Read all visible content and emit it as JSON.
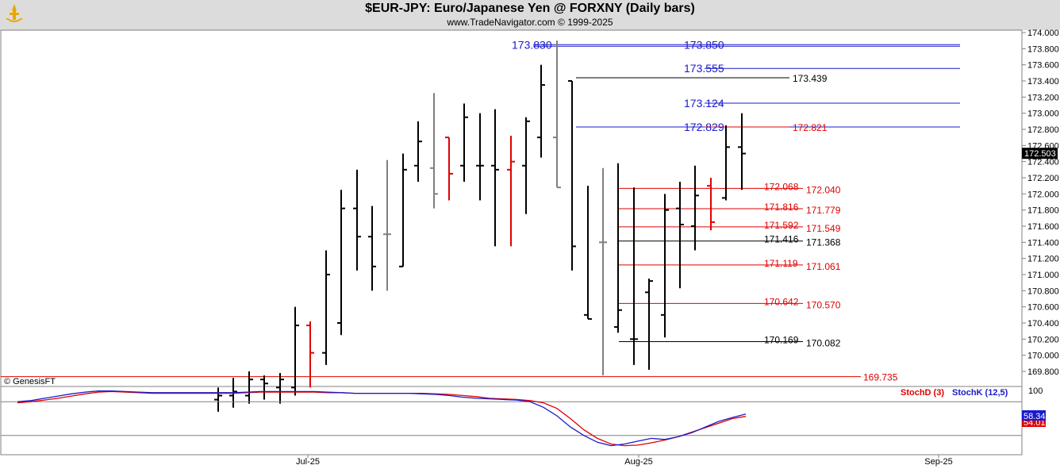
{
  "header": {
    "title": "$EUR-JPY:  Euro/Japanese Yen @ FORXNY  (Daily bars)",
    "subtitle": "www.TradeNavigator.com © 1999-2025"
  },
  "watermark": "© GenesisFT",
  "colors": {
    "background": "#ffffff",
    "header": "#dcdcdc",
    "up_bar": "#000000",
    "down_bar": "#e00000",
    "neutral_bar": "#808080",
    "blue_level": "#1a1acc",
    "red_level": "#e00000",
    "stoch_d": "#e00000",
    "stoch_k": "#1a1acc"
  },
  "chart_data": [
    {
      "type": "ohlc",
      "title": "$EUR-JPY:  Euro/Japanese Yen @ FORXNY  (Daily bars)",
      "ylim": [
        169.6,
        174.05
      ],
      "y_ticks": [
        "174.000",
        "173.800",
        "173.600",
        "173.400",
        "173.200",
        "173.000",
        "172.800",
        "172.600",
        "172.400",
        "172.200",
        "172.000",
        "171.800",
        "171.600",
        "171.400",
        "171.200",
        "171.000",
        "170.800",
        "170.600",
        "170.400",
        "170.200",
        "170.000",
        "169.800"
      ],
      "x_ticks": [
        "Jul-25",
        "Aug-25",
        "Sep-25"
      ],
      "last_price": "172.503",
      "bars": [
        {
          "open": 169.45,
          "high": 169.6,
          "low": 169.3,
          "close": 169.5,
          "color": "black"
        },
        {
          "open": 169.5,
          "high": 169.72,
          "low": 169.35,
          "close": 169.55,
          "color": "black"
        },
        {
          "open": 169.5,
          "high": 169.8,
          "low": 169.4,
          "close": 169.7,
          "color": "black"
        },
        {
          "open": 169.7,
          "high": 169.75,
          "low": 169.45,
          "close": 169.65,
          "color": "black"
        },
        {
          "open": 169.6,
          "high": 169.78,
          "low": 169.4,
          "close": 169.7,
          "color": "black"
        },
        {
          "open": 169.6,
          "high": 170.6,
          "low": 169.5,
          "close": 170.37,
          "color": "black"
        },
        {
          "open": 170.37,
          "high": 170.42,
          "low": 169.6,
          "close": 170.03,
          "color": "red"
        },
        {
          "open": 170.03,
          "high": 171.3,
          "low": 169.88,
          "close": 171.0,
          "color": "black"
        },
        {
          "open": 170.4,
          "high": 172.05,
          "low": 170.25,
          "close": 171.82,
          "color": "black"
        },
        {
          "open": 171.82,
          "high": 172.3,
          "low": 171.05,
          "close": 171.47,
          "color": "black"
        },
        {
          "open": 171.47,
          "high": 171.85,
          "low": 170.8,
          "close": 171.1,
          "color": "black"
        },
        {
          "open": 171.5,
          "high": 172.42,
          "low": 170.8,
          "close": 171.5,
          "color": "gray"
        },
        {
          "open": 171.1,
          "high": 172.5,
          "low": 171.1,
          "close": 172.3,
          "color": "black"
        },
        {
          "open": 172.35,
          "high": 172.9,
          "low": 172.15,
          "close": 172.65,
          "color": "black"
        },
        {
          "open": 172.32,
          "high": 173.25,
          "low": 171.82,
          "close": 172.0,
          "color": "gray"
        },
        {
          "open": 172.7,
          "high": 172.7,
          "low": 171.92,
          "close": 172.25,
          "color": "red"
        },
        {
          "open": 172.35,
          "high": 173.12,
          "low": 172.15,
          "close": 172.95,
          "color": "black"
        },
        {
          "open": 172.35,
          "high": 173.0,
          "low": 171.92,
          "close": 172.35,
          "color": "black"
        },
        {
          "open": 172.35,
          "high": 173.05,
          "low": 171.35,
          "close": 172.3,
          "color": "black"
        },
        {
          "open": 172.3,
          "high": 172.72,
          "low": 171.35,
          "close": 172.4,
          "color": "red"
        },
        {
          "open": 172.35,
          "high": 172.95,
          "low": 171.75,
          "close": 172.9,
          "color": "black"
        },
        {
          "open": 172.7,
          "high": 173.6,
          "low": 172.45,
          "close": 173.35,
          "color": "black"
        },
        {
          "open": 172.7,
          "high": 173.9,
          "low": 172.08,
          "close": 172.08,
          "color": "gray"
        },
        {
          "open": 173.4,
          "high": 173.4,
          "low": 171.05,
          "close": 171.35,
          "color": "black"
        },
        {
          "open": 170.5,
          "high": 172.1,
          "low": 170.45,
          "close": 170.45,
          "color": "black"
        },
        {
          "open": 171.4,
          "high": 172.32,
          "low": 169.75,
          "close": 171.4,
          "color": "gray"
        },
        {
          "open": 170.35,
          "high": 172.38,
          "low": 170.28,
          "close": 170.56,
          "color": "black"
        },
        {
          "open": 170.2,
          "high": 172.08,
          "low": 169.88,
          "close": 170.2,
          "color": "black"
        },
        {
          "open": 170.78,
          "high": 170.95,
          "low": 169.82,
          "close": 170.92,
          "color": "black"
        },
        {
          "open": 170.5,
          "high": 172.0,
          "low": 170.22,
          "close": 171.8,
          "color": "black"
        },
        {
          "open": 171.82,
          "high": 172.15,
          "low": 170.83,
          "close": 171.62,
          "color": "black"
        },
        {
          "open": 171.6,
          "high": 172.35,
          "low": 171.3,
          "close": 171.98,
          "color": "black"
        },
        {
          "open": 172.1,
          "high": 172.2,
          "low": 171.55,
          "close": 171.65,
          "color": "red"
        },
        {
          "open": 171.95,
          "high": 172.85,
          "low": 171.92,
          "close": 172.58,
          "color": "black"
        },
        {
          "open": 172.58,
          "high": 173.0,
          "low": 172.05,
          "close": 172.5,
          "color": "black"
        }
      ],
      "levels": [
        {
          "price": 173.85,
          "label": "173.850",
          "label2": "173.830",
          "color": "blue"
        },
        {
          "price": 173.555,
          "label": "173.555",
          "color": "blue"
        },
        {
          "price": 173.439,
          "label": "173.439",
          "color": "black"
        },
        {
          "price": 173.124,
          "label": "173.124",
          "color": "blue"
        },
        {
          "price": 172.829,
          "label": "172.829",
          "label2": "172.821",
          "color": "blue"
        },
        {
          "price": 172.068,
          "label": "172.068",
          "label2": "172.040",
          "color": "red"
        },
        {
          "price": 171.816,
          "label": "171.816",
          "label2": "171.779",
          "color": "red"
        },
        {
          "price": 171.592,
          "label": "171.592",
          "label2": "171.549",
          "color": "red"
        },
        {
          "price": 171.416,
          "label": "171.416",
          "label2": "171.368",
          "color": "black"
        },
        {
          "price": 171.119,
          "label": "171.119",
          "label2": "171.061",
          "color": "red"
        },
        {
          "price": 170.642,
          "label": "170.642",
          "label2": "170.570",
          "color": "red"
        },
        {
          "price": 170.169,
          "label": "170.169",
          "label2": "170.082",
          "color": "black"
        },
        {
          "price": 169.735,
          "label": "169.735",
          "color": "red"
        }
      ]
    },
    {
      "type": "line",
      "series": [
        {
          "name": "StochD (3)",
          "color": "#e00000",
          "last_label": "54.01",
          "values": [
            78,
            80,
            83,
            86,
            90,
            94,
            97,
            98,
            97,
            96,
            95,
            95,
            95,
            95,
            95,
            95,
            95,
            96,
            97,
            97,
            97,
            97,
            97,
            96,
            96,
            95,
            95,
            95,
            95,
            95,
            95,
            94,
            93,
            91,
            89,
            86,
            85,
            84,
            82,
            78,
            68,
            50,
            30,
            15,
            5,
            2,
            3,
            7,
            12,
            18,
            26,
            34,
            42,
            50,
            54
          ]
        },
        {
          "name": "StochK (12,5)",
          "color": "#1a1acc",
          "last_label": "58.34",
          "values": [
            80,
            82,
            86,
            90,
            94,
            97,
            99,
            99,
            98,
            97,
            96,
            96,
            96,
            96,
            96,
            96,
            96,
            97,
            98,
            98,
            98,
            98,
            98,
            97,
            96,
            95,
            95,
            95,
            95,
            95,
            94,
            93,
            91,
            88,
            86,
            85,
            84,
            83,
            80,
            70,
            55,
            35,
            20,
            8,
            2,
            5,
            10,
            15,
            13,
            18,
            25,
            35,
            45,
            52,
            58
          ]
        }
      ],
      "ylim": [
        0,
        100
      ],
      "y_ticks": [
        "100"
      ]
    }
  ]
}
